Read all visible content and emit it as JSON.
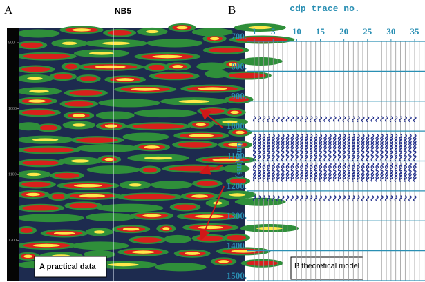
{
  "panels": [
    {
      "letter": "A",
      "title": "NB5",
      "ylim": [
        877,
        1262
      ],
      "yticks": [
        900,
        1000,
        1100,
        1200
      ],
      "caption": "A practical data"
    },
    {
      "letter": "B",
      "x_label": "cdp trace no.",
      "y_label": "time(ms)",
      "xlim": [
        1,
        35
      ],
      "xticks": [
        1,
        5,
        10,
        15,
        20,
        25,
        30,
        35
      ],
      "ylim": [
        700,
        1500
      ],
      "yticks": [
        {
          "value": 700,
          "label": "700."
        },
        {
          "value": 800,
          "label": "800."
        },
        {
          "value": 900,
          "label": "900."
        },
        {
          "value": 1000,
          "label": "1000."
        },
        {
          "value": 1100,
          "label": "1100."
        },
        {
          "value": 1200,
          "label": "1200."
        },
        {
          "value": 1300,
          "label": "1300."
        },
        {
          "value": 1400,
          "label": "1400."
        },
        {
          "value": 1500,
          "label": "1500."
        }
      ],
      "event_times": [
        960,
        1020,
        1030,
        1040,
        1050,
        1060,
        1075,
        1090,
        1115,
        1125,
        1140,
        1150,
        1160,
        1225
      ],
      "caption": "B theoretical model"
    }
  ]
}
